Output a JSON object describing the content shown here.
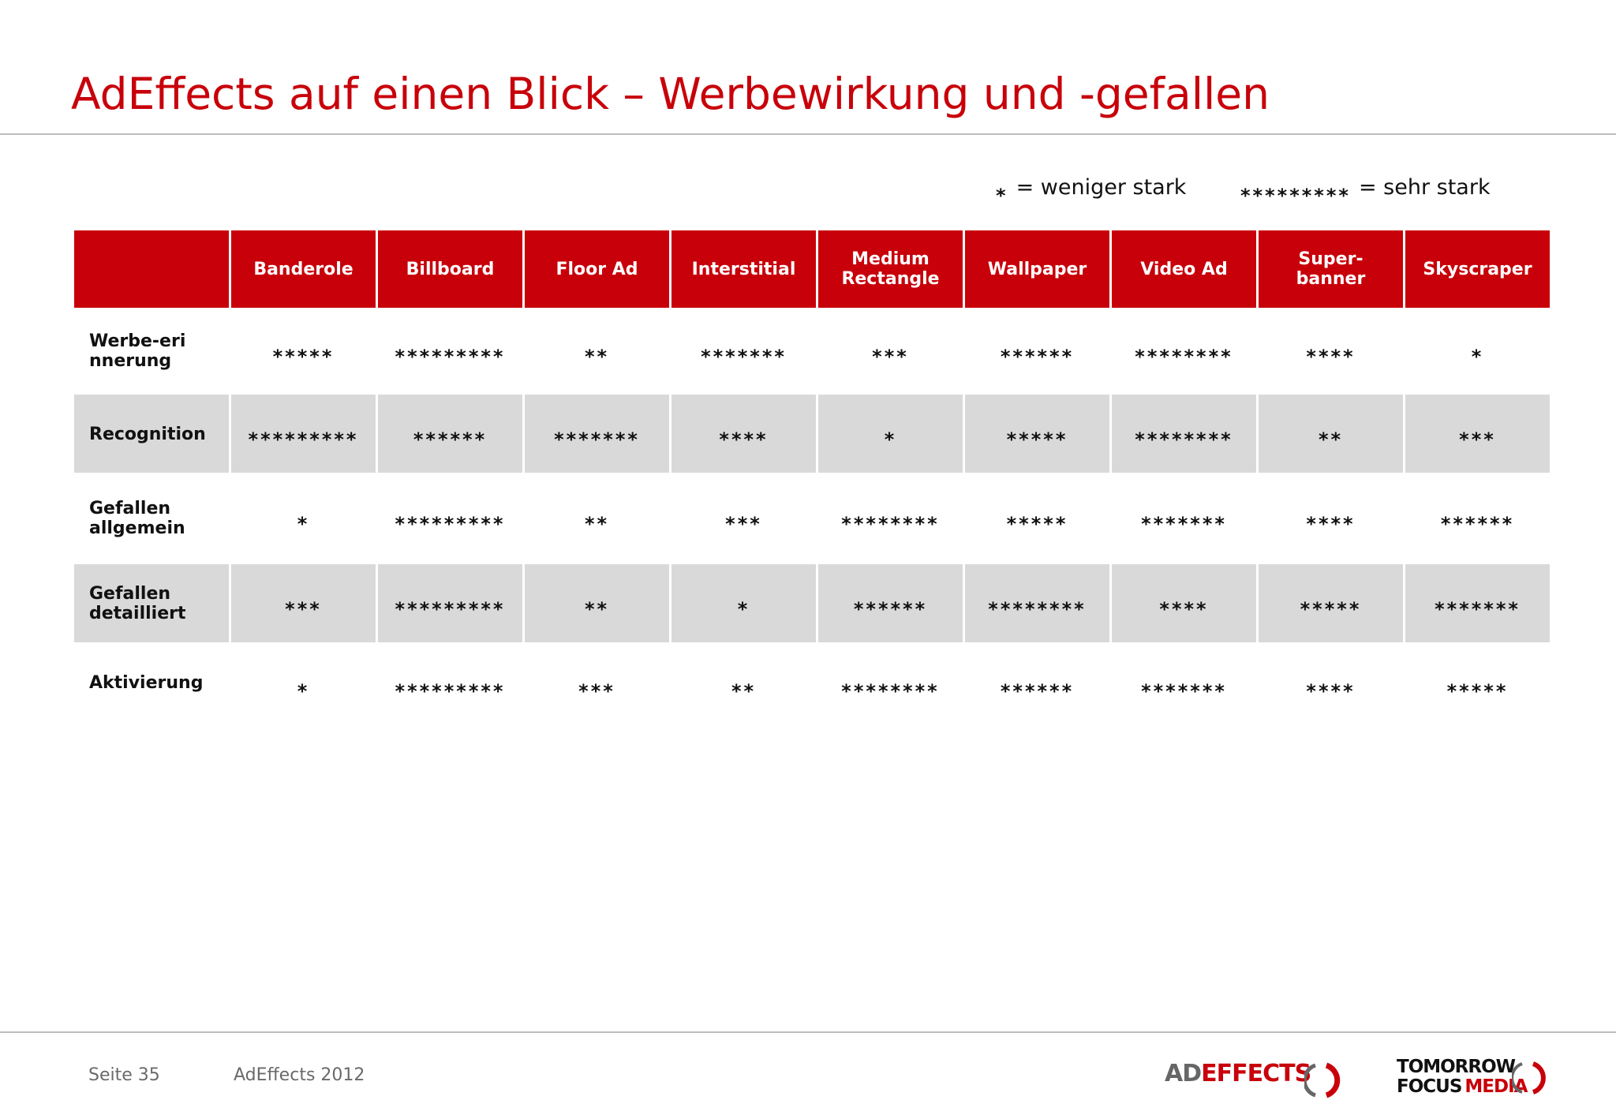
{
  "title": "AdEffects auf einen Blick – Werbewirkung und -gefallen",
  "legend": [
    {
      "stars": "*",
      "label": "= weniger stark"
    },
    {
      "stars": "*********",
      "label": "= sehr stark"
    }
  ],
  "table": {
    "columns": [
      "Banderole",
      "Billboard",
      "Floor Ad",
      "Interstitial",
      "Medium Rectangle",
      "Wallpaper",
      "Video Ad",
      "Super-banner",
      "Skyscraper"
    ],
    "rows": [
      {
        "label": "Werbe-erinnerung",
        "values": [
          "*****",
          "*********",
          "**",
          "*******",
          "***",
          "******",
          "********",
          "****",
          "*"
        ]
      },
      {
        "label": "Recognition",
        "values": [
          "*********",
          "******",
          "*******",
          "****",
          "*",
          "*****",
          "********",
          "**",
          "***"
        ]
      },
      {
        "label": "Gefallen allgemein",
        "values": [
          "*",
          "*********",
          "**",
          "***",
          "********",
          "*****",
          "*******",
          "****",
          "******"
        ]
      },
      {
        "label": "Gefallen detailliert",
        "values": [
          "***",
          "*********",
          "**",
          "*",
          "******",
          "********",
          "****",
          "*****",
          "*******"
        ]
      },
      {
        "label": "Aktivierung",
        "values": [
          "*",
          "*********",
          "***",
          "**",
          "********",
          "******",
          "*******",
          "****",
          "*****"
        ]
      }
    ]
  },
  "footer": {
    "page": "Seite 35",
    "source": "AdEffects 2012",
    "logo_adeffects": {
      "ad": "AD",
      "effects": "EFFECTS"
    },
    "logo_tfm": {
      "line1": "TOMORROW",
      "focus": "FOCUS",
      "media": "MEDIA"
    }
  },
  "colors": {
    "accent": "#c8000a",
    "alt_row": "#d9d9d9",
    "rule": "#bdbdbd"
  }
}
